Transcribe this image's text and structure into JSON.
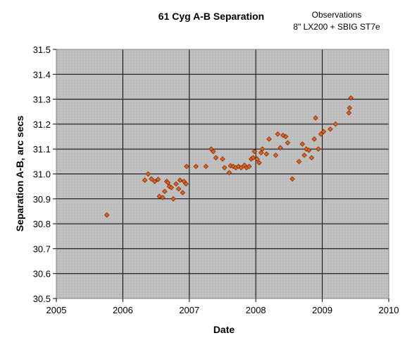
{
  "chart_data": {
    "type": "scatter",
    "title": "61 Cyg A-B Separation",
    "annotation_lines": [
      "Observations",
      "8\" LX200 + SBIG ST7e"
    ],
    "xlabel": "Date",
    "ylabel": "Separation A-B, arc secs",
    "xlim": [
      2005,
      2010
    ],
    "ylim": [
      30.5,
      31.5
    ],
    "x_ticks": [
      "2005",
      "2006",
      "2007",
      "2008",
      "2009",
      "2010"
    ],
    "y_ticks": [
      "30.5",
      "30.6",
      "30.7",
      "30.8",
      "30.9",
      "31.0",
      "31.1",
      "31.2",
      "31.3",
      "31.4",
      "31.5"
    ],
    "grid": true,
    "plot_background": "#c0c0c0",
    "marker_color": "#e8601c",
    "marker_edge": "#7a2e00",
    "points": [
      [
        2005.76,
        30.835
      ],
      [
        2006.33,
        30.975
      ],
      [
        2006.38,
        31.0
      ],
      [
        2006.43,
        30.98
      ],
      [
        2006.48,
        30.97
      ],
      [
        2006.53,
        30.978
      ],
      [
        2006.55,
        30.91
      ],
      [
        2006.6,
        30.905
      ],
      [
        2006.63,
        30.93
      ],
      [
        2006.66,
        30.97
      ],
      [
        2006.68,
        30.965
      ],
      [
        2006.7,
        30.95
      ],
      [
        2006.73,
        30.945
      ],
      [
        2006.76,
        30.9
      ],
      [
        2006.8,
        30.96
      ],
      [
        2006.84,
        30.94
      ],
      [
        2006.86,
        30.975
      ],
      [
        2006.9,
        30.925
      ],
      [
        2006.92,
        30.97
      ],
      [
        2006.95,
        30.96
      ],
      [
        2006.96,
        31.03
      ],
      [
        2007.1,
        31.03
      ],
      [
        2007.25,
        31.03
      ],
      [
        2007.33,
        31.1
      ],
      [
        2007.36,
        31.09
      ],
      [
        2007.4,
        31.065
      ],
      [
        2007.5,
        31.06
      ],
      [
        2007.53,
        31.025
      ],
      [
        2007.6,
        31.005
      ],
      [
        2007.62,
        31.033
      ],
      [
        2007.66,
        31.03
      ],
      [
        2007.7,
        31.025
      ],
      [
        2007.74,
        31.03
      ],
      [
        2007.78,
        31.025
      ],
      [
        2007.83,
        31.035
      ],
      [
        2007.86,
        31.025
      ],
      [
        2007.9,
        31.03
      ],
      [
        2007.93,
        31.06
      ],
      [
        2007.96,
        31.065
      ],
      [
        2007.98,
        31.09
      ],
      [
        2008.02,
        31.06
      ],
      [
        2008.05,
        31.045
      ],
      [
        2008.08,
        31.085
      ],
      [
        2008.1,
        31.1
      ],
      [
        2008.16,
        31.08
      ],
      [
        2008.2,
        31.14
      ],
      [
        2008.3,
        31.075
      ],
      [
        2008.33,
        31.16
      ],
      [
        2008.37,
        31.105
      ],
      [
        2008.41,
        31.155
      ],
      [
        2008.45,
        31.15
      ],
      [
        2008.48,
        31.125
      ],
      [
        2008.55,
        30.98
      ],
      [
        2008.65,
        31.05
      ],
      [
        2008.7,
        31.12
      ],
      [
        2008.73,
        31.075
      ],
      [
        2008.76,
        31.1
      ],
      [
        2008.8,
        31.095
      ],
      [
        2008.84,
        31.065
      ],
      [
        2008.88,
        31.14
      ],
      [
        2008.9,
        31.225
      ],
      [
        2008.94,
        31.1
      ],
      [
        2008.98,
        31.16
      ],
      [
        2009.02,
        31.17
      ],
      [
        2009.12,
        31.18
      ],
      [
        2009.2,
        31.2
      ],
      [
        2009.4,
        31.245
      ],
      [
        2009.41,
        31.265
      ],
      [
        2009.43,
        31.305
      ]
    ]
  }
}
